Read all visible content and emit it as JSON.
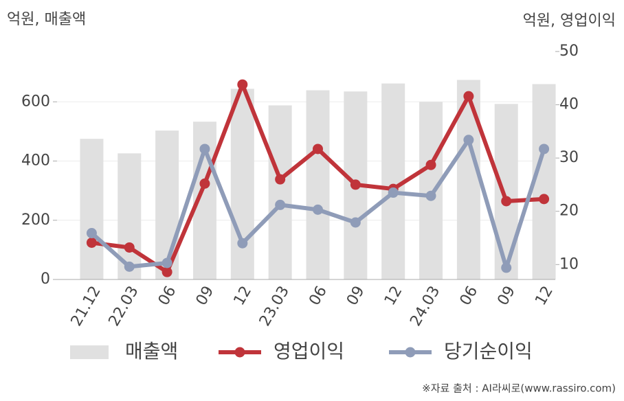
{
  "chart_data": {
    "type": "combo",
    "y_label": "억원, 매출액",
    "y2_label": "억원, 영업이익",
    "source": "※자료 출처 : AI라씨로(www.rassiro.com)",
    "categories": [
      "21.12",
      "22.03",
      "06",
      "09",
      "12",
      "23.03",
      "06",
      "09",
      "12",
      "24.03",
      "06",
      "09",
      "12"
    ],
    "ylim": [
      0,
      770
    ],
    "yticks": [
      0,
      200,
      400,
      600
    ],
    "y2lim": [
      7.2,
      50
    ],
    "y2ticks": [
      10,
      20,
      30,
      40,
      50
    ],
    "grid": true,
    "series": [
      {
        "name": "매출액",
        "type": "bar",
        "color": "#e0e0e0",
        "values": [
          475,
          426,
          503,
          533,
          644,
          588,
          639,
          635,
          662,
          600,
          674,
          593,
          660
        ]
      },
      {
        "name": "영업이익",
        "type": "line",
        "axis": "y2",
        "color": "#c0343a",
        "values": [
          14.1,
          13.2,
          8.6,
          25.2,
          43.8,
          26.0,
          31.7,
          25.0,
          24.2,
          28.7,
          41.6,
          21.9,
          22.3
        ]
      },
      {
        "name": "당기순이익",
        "type": "line",
        "axis": "y2",
        "color": "#8f9cb8",
        "values": [
          15.9,
          9.6,
          10.3,
          31.7,
          14.0,
          21.2,
          20.3,
          17.9,
          23.5,
          22.9,
          33.4,
          9.4,
          31.7
        ]
      }
    ]
  }
}
